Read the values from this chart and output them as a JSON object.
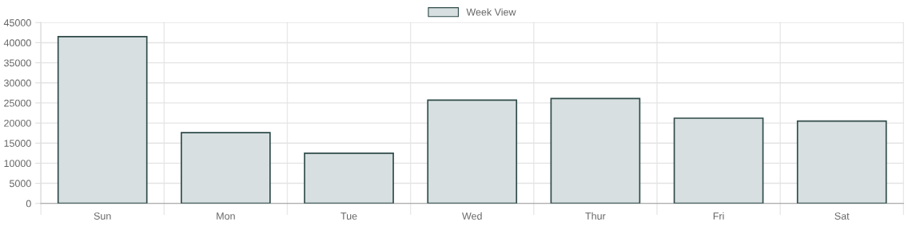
{
  "chart_data": {
    "type": "bar",
    "categories": [
      "Sun",
      "Mon",
      "Tue",
      "Wed",
      "Thur",
      "Fri",
      "Sat"
    ],
    "series": [
      {
        "name": "Week View",
        "color": "#d7dfe0",
        "values": [
          41500,
          17600,
          12500,
          25700,
          26100,
          21200,
          20500
        ]
      }
    ],
    "ylim": [
      0,
      45000
    ],
    "yticks": [
      0,
      5000,
      10000,
      15000,
      20000,
      25000,
      30000,
      35000,
      40000,
      45000
    ],
    "grid": true,
    "legend": "top"
  }
}
